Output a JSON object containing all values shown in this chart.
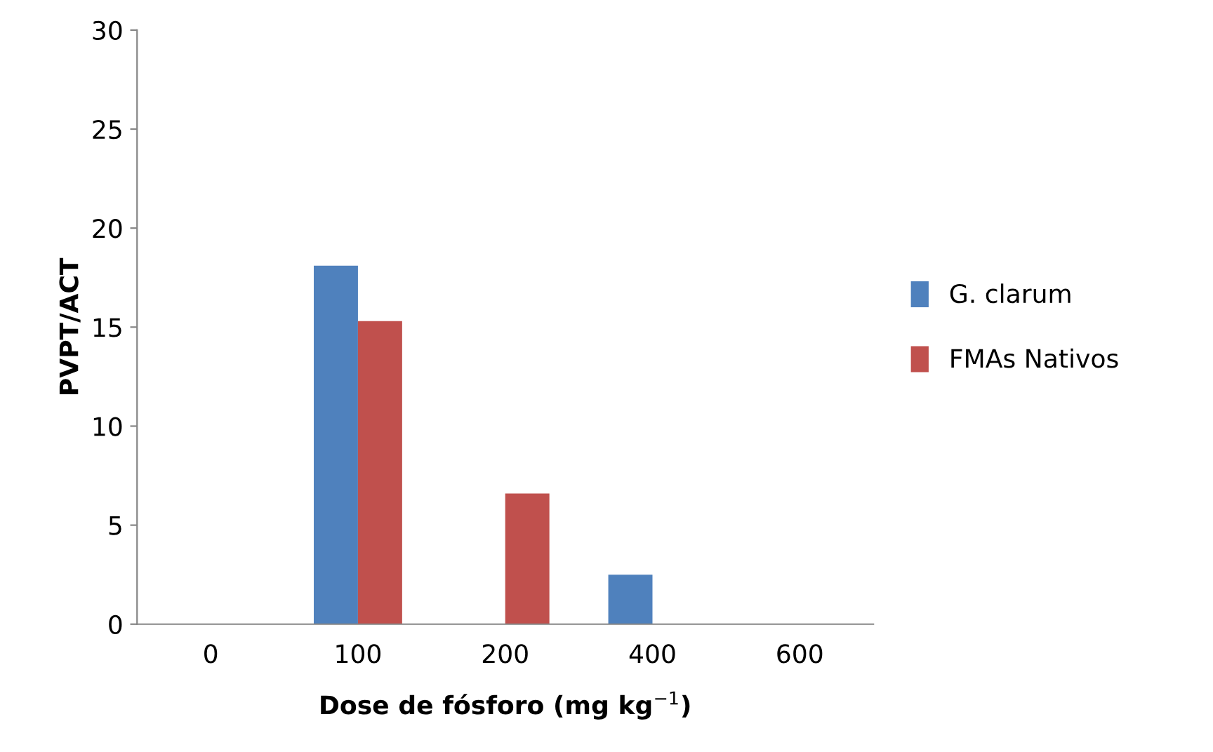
{
  "chart_data": {
    "type": "bar",
    "xlabel": "Dose de fósforo (mg kg$^{−1}$)",
    "ylabel": "PVPT/ACT",
    "categories": [
      "0",
      "100",
      "200",
      "400",
      "600"
    ],
    "series": [
      {
        "name": "G. clarum",
        "color": "#4f81bd",
        "values": [
          0,
          18.1,
          0,
          2.5,
          0
        ]
      },
      {
        "name": "FMAs Nativos",
        "color": "#c0504d",
        "values": [
          0,
          15.3,
          6.6,
          0,
          0
        ]
      }
    ],
    "ylim": [
      0,
      30
    ],
    "yticks": [
      0,
      5,
      10,
      15,
      20,
      25,
      30
    ],
    "grid": false,
    "legend": "right"
  }
}
